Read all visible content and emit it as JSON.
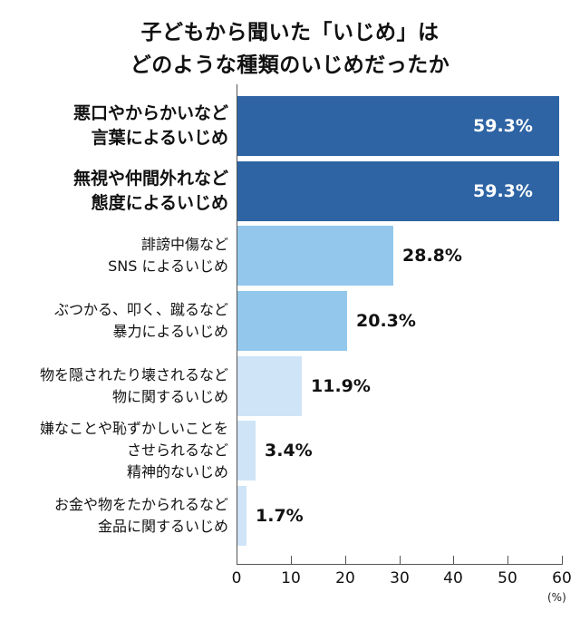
{
  "chart_data": {
    "type": "bar",
    "orientation": "horizontal",
    "title": "子どもから聞いた「いじめ」は どのような種類のいじめだったか",
    "title_lines": [
      "子どもから聞いた「いじめ」は",
      "どのような種類のいじめだったか"
    ],
    "xlabel": "",
    "ylabel": "",
    "unit_label": "(%)",
    "xlim": [
      0,
      60
    ],
    "xticks": [
      "0",
      "10",
      "20",
      "30",
      "40",
      "50",
      "60"
    ],
    "grid": false,
    "legend": null,
    "categories": [
      "悪口やからかいなど言葉によるいじめ",
      "無視や仲間外れなど態度によるいじめ",
      "誹謗中傷などSNSによるいじめ",
      "ぶつかる、叩く、蹴るなど暴力によるいじめ",
      "物を隠されたり壊されるなど物に関するいじめ",
      "嫌なことや恥ずかしいことをさせられるなど精神的ないじめ",
      "お金や物をたかられるなど金品に関するいじめ"
    ],
    "values": [
      59.3,
      59.3,
      28.8,
      20.3,
      11.9,
      3.4,
      1.7
    ],
    "value_labels": [
      "59.3%",
      "59.3%",
      "28.8%",
      "20.3%",
      "11.9%",
      "3.4%",
      "1.7%"
    ],
    "bars": [
      {
        "label_lines": [
          "悪口やからかいなど",
          "言葉によるいじめ"
        ],
        "value": 59.3,
        "value_label": "59.3%",
        "color": "#2E64A4",
        "emphasis": true
      },
      {
        "label_lines": [
          "無視や仲間外れなど",
          "態度によるいじめ"
        ],
        "value": 59.3,
        "value_label": "59.3%",
        "color": "#2E64A4",
        "emphasis": true
      },
      {
        "label_lines": [
          "誹謗中傷など",
          "SNS によるいじめ"
        ],
        "value": 28.8,
        "value_label": "28.8%",
        "color": "#93C8EC",
        "emphasis": false
      },
      {
        "label_lines": [
          "ぶつかる、叩く、蹴るなど",
          "暴力によるいじめ"
        ],
        "value": 20.3,
        "value_label": "20.3%",
        "color": "#93C8EC",
        "emphasis": false
      },
      {
        "label_lines": [
          "物を隠されたり壊されるなど",
          "物に関するいじめ"
        ],
        "value": 11.9,
        "value_label": "11.9%",
        "color": "#CFE4F6",
        "emphasis": false
      },
      {
        "label_lines": [
          "嫌なことや恥ずかしいことを",
          "させられるなど",
          "精神的ないじめ"
        ],
        "value": 3.4,
        "value_label": "3.4%",
        "color": "#CFE4F6",
        "emphasis": false
      },
      {
        "label_lines": [
          "お金や物をたかられるなど",
          "金品に関するいじめ"
        ],
        "value": 1.7,
        "value_label": "1.7%",
        "color": "#CFE4F6",
        "emphasis": false
      }
    ]
  }
}
